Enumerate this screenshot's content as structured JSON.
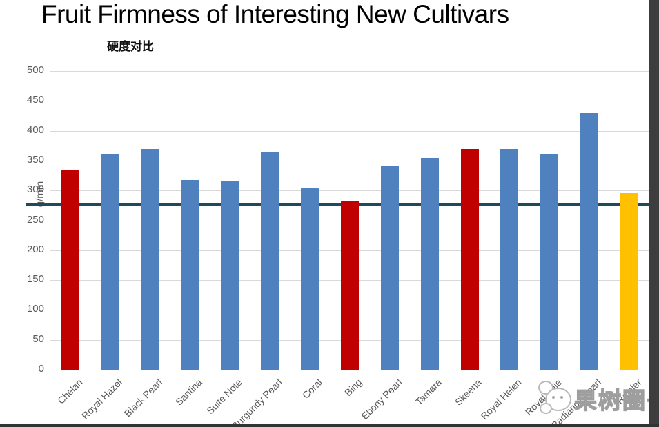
{
  "chart_data": {
    "type": "bar",
    "title": "Fruit Firmness of Interesting New Cultivars",
    "subtitle": "硬度对比",
    "ylabel": "g/mm",
    "ylim": [
      0,
      500
    ],
    "ytick_step": 50,
    "grid": true,
    "legend": "none",
    "categories": [
      "Chelan",
      "Royal Hazel",
      "Black Pearl",
      "Santina",
      "Suite Note",
      "Burgundy Pearl",
      "Coral",
      "Bing",
      "Ebony Pearl",
      "Tamara",
      "Skeena",
      "Royal Helen",
      "Royal Edie",
      "Radiance Pearl",
      "Rainier"
    ],
    "values": [
      334,
      362,
      370,
      318,
      316,
      365,
      305,
      283,
      342,
      355,
      369,
      370,
      362,
      430,
      296
    ],
    "bar_colors": [
      "#c00000",
      "#4e81bd",
      "#4e81bd",
      "#4e81bd",
      "#4e81bd",
      "#4e81bd",
      "#4e81bd",
      "#c00000",
      "#4e81bd",
      "#4e81bd",
      "#c00000",
      "#4e81bd",
      "#4e81bd",
      "#4e81bd",
      "#ffc000"
    ],
    "reference_line": {
      "value": 277,
      "color": "#1f4a5e"
    }
  },
  "colors": {
    "highlight_red": "#c00000",
    "series_blue": "#4e81bd",
    "gold": "#ffc000",
    "reference_line": "#1f4a5e",
    "gridline": "#d9d9d9",
    "tick_text": "#595959"
  },
  "watermark": {
    "icon": "mascot-icon",
    "text": "果树圈子"
  }
}
